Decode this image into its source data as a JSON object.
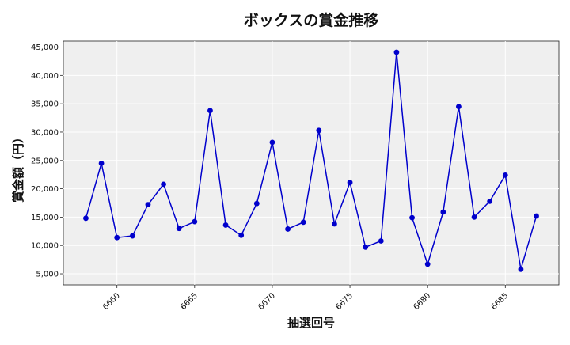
{
  "chart_data": {
    "type": "line",
    "title": "ボックスの賞金推移",
    "xlabel": "抽選回号",
    "ylabel": "賞金額（円）",
    "x": [
      6658,
      6659,
      6660,
      6661,
      6662,
      6663,
      6664,
      6665,
      6666,
      6667,
      6668,
      6669,
      6670,
      6671,
      6672,
      6673,
      6674,
      6675,
      6676,
      6677,
      6678,
      6679,
      6680,
      6681,
      6682,
      6683,
      6684,
      6685,
      6686,
      6687
    ],
    "series": [
      {
        "values": [
          14800,
          24500,
          11400,
          11700,
          17200,
          20800,
          13000,
          14200,
          33800,
          13600,
          11800,
          17400,
          28200,
          12900,
          14100,
          30300,
          13800,
          21100,
          9700,
          10800,
          44100,
          14900,
          6700,
          15900,
          34500,
          15000,
          17800,
          22400,
          5800,
          15200
        ],
        "color": "#0000cc"
      }
    ],
    "xticks": [
      "6660",
      "6665",
      "6670",
      "6675",
      "6680",
      "6685"
    ],
    "yticks": [
      "5,000",
      "10,000",
      "15,000",
      "20,000",
      "25,000",
      "30,000",
      "35,000",
      "40,000",
      "45,000"
    ],
    "xlim": [
      6656.55,
      6688.45
    ],
    "ylim": [
      3050,
      46050
    ],
    "grid": true,
    "background": "#efefef"
  }
}
